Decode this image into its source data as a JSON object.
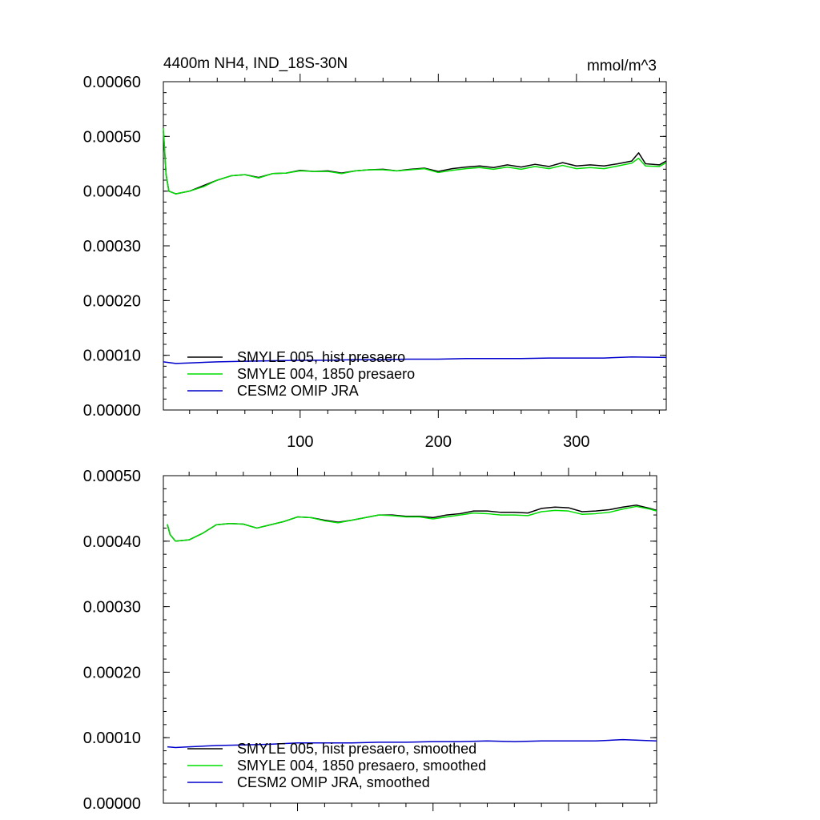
{
  "chart_data": [
    {
      "type": "line",
      "title": "4400m NH4, IND_18S-30N",
      "units": "mmol/m^3",
      "xlabel": "",
      "ylabel": "",
      "xlim": [
        1,
        365
      ],
      "ylim": [
        0,
        0.0006
      ],
      "x_ticks": [
        100,
        200,
        300
      ],
      "x_tick_labels": [
        "100",
        "200",
        "300"
      ],
      "y_ticks": [
        0,
        0.0001,
        0.0002,
        0.0003,
        0.0004,
        0.0005,
        0.0006
      ],
      "y_tick_labels": [
        "0.00000",
        "0.00010",
        "0.00020",
        "0.00030",
        "0.00040",
        "0.00050",
        "0.00060"
      ],
      "grid": false,
      "legend_position": "bottom-left",
      "series": [
        {
          "name": "SMYLE 005, hist presaero",
          "color": "#000000",
          "x": [
            1,
            3,
            5,
            10,
            20,
            30,
            40,
            50,
            60,
            70,
            80,
            90,
            100,
            110,
            120,
            130,
            140,
            150,
            160,
            170,
            180,
            190,
            200,
            210,
            220,
            230,
            240,
            250,
            260,
            270,
            280,
            290,
            300,
            310,
            320,
            330,
            340,
            345,
            350,
            360,
            365
          ],
          "values": [
            0.00051,
            0.00043,
            0.0004,
            0.000395,
            0.0004,
            0.00041,
            0.00042,
            0.000428,
            0.00043,
            0.000425,
            0.000432,
            0.000433,
            0.000438,
            0.000436,
            0.000437,
            0.000433,
            0.000437,
            0.000439,
            0.00044,
            0.000437,
            0.00044,
            0.000442,
            0.000436,
            0.000441,
            0.000444,
            0.000446,
            0.000443,
            0.000448,
            0.000444,
            0.000449,
            0.000445,
            0.000452,
            0.000446,
            0.000448,
            0.000446,
            0.00045,
            0.000455,
            0.00047,
            0.00045,
            0.000448,
            0.000455
          ]
        },
        {
          "name": "SMYLE 004, 1850 presaero",
          "color": "#00dd00",
          "x": [
            1,
            3,
            5,
            10,
            20,
            30,
            40,
            50,
            60,
            70,
            80,
            90,
            100,
            110,
            120,
            130,
            140,
            150,
            160,
            170,
            180,
            190,
            200,
            210,
            220,
            230,
            240,
            250,
            260,
            270,
            280,
            290,
            300,
            310,
            320,
            330,
            340,
            345,
            350,
            360,
            365
          ],
          "values": [
            0.000515,
            0.00043,
            0.0004,
            0.000395,
            0.0004,
            0.000408,
            0.00042,
            0.000428,
            0.00043,
            0.000424,
            0.000432,
            0.000433,
            0.000437,
            0.000436,
            0.000436,
            0.000432,
            0.000437,
            0.000439,
            0.000439,
            0.000437,
            0.000439,
            0.000441,
            0.000434,
            0.000438,
            0.000441,
            0.000443,
            0.00044,
            0.000444,
            0.00044,
            0.000445,
            0.000441,
            0.000447,
            0.000441,
            0.000443,
            0.000441,
            0.000446,
            0.000451,
            0.00046,
            0.000446,
            0.000445,
            0.000452
          ]
        },
        {
          "name": "CESM2 OMIP JRA",
          "color": "#0000cc",
          "x": [
            1,
            10,
            20,
            40,
            60,
            80,
            100,
            120,
            140,
            160,
            180,
            200,
            220,
            240,
            260,
            280,
            300,
            320,
            340,
            365
          ],
          "values": [
            8.8e-05,
            8.5e-05,
            8.6e-05,
            8.8e-05,
            8.9e-05,
            9e-05,
            9.1e-05,
            9.1e-05,
            9.2e-05,
            9.2e-05,
            9.3e-05,
            9.3e-05,
            9.4e-05,
            9.4e-05,
            9.4e-05,
            9.5e-05,
            9.5e-05,
            9.5e-05,
            9.7e-05,
            9.6e-05
          ]
        }
      ]
    },
    {
      "type": "line",
      "title": "",
      "xlabel": "",
      "ylabel": "",
      "xlim": [
        1,
        365
      ],
      "ylim": [
        0,
        0.0005
      ],
      "x_ticks": [
        100,
        200,
        300
      ],
      "x_tick_labels": [],
      "y_ticks": [
        0,
        0.0001,
        0.0002,
        0.0003,
        0.0004,
        0.0005
      ],
      "y_tick_labels": [
        "0.00000",
        "0.00010",
        "0.00020",
        "0.00030",
        "0.00040",
        "0.00050"
      ],
      "grid": false,
      "legend_position": "bottom-left",
      "series": [
        {
          "name": "SMYLE 005, hist presaero, smoothed",
          "color": "#000000",
          "x": [
            4,
            6,
            10,
            20,
            30,
            40,
            50,
            60,
            70,
            80,
            90,
            100,
            110,
            120,
            130,
            140,
            150,
            160,
            170,
            180,
            190,
            200,
            210,
            220,
            230,
            240,
            250,
            260,
            270,
            280,
            290,
            300,
            310,
            320,
            330,
            340,
            350,
            360,
            365
          ],
          "values": [
            0.000425,
            0.00041,
            0.0004,
            0.000402,
            0.000412,
            0.000425,
            0.000427,
            0.000426,
            0.00042,
            0.000425,
            0.00043,
            0.000437,
            0.000436,
            0.000432,
            0.000429,
            0.000432,
            0.000436,
            0.00044,
            0.00044,
            0.000438,
            0.000438,
            0.000436,
            0.00044,
            0.000442,
            0.000446,
            0.000446,
            0.000444,
            0.000444,
            0.000443,
            0.00045,
            0.000452,
            0.000451,
            0.000445,
            0.000446,
            0.000448,
            0.000452,
            0.000455,
            0.00045,
            0.000447
          ]
        },
        {
          "name": "SMYLE 004, 1850 presaero, smoothed",
          "color": "#00dd00",
          "x": [
            4,
            6,
            10,
            20,
            30,
            40,
            50,
            60,
            70,
            80,
            90,
            100,
            110,
            120,
            130,
            140,
            150,
            160,
            170,
            180,
            190,
            200,
            210,
            220,
            230,
            240,
            250,
            260,
            270,
            280,
            290,
            300,
            310,
            320,
            330,
            340,
            350,
            360,
            365
          ],
          "values": [
            0.000426,
            0.00041,
            0.0004,
            0.000402,
            0.000412,
            0.000425,
            0.000427,
            0.000426,
            0.00042,
            0.000425,
            0.00043,
            0.000437,
            0.000436,
            0.000431,
            0.000428,
            0.000432,
            0.000436,
            0.00044,
            0.000439,
            0.000437,
            0.000437,
            0.000434,
            0.000437,
            0.00044,
            0.000443,
            0.000442,
            0.00044,
            0.00044,
            0.000439,
            0.000445,
            0.000447,
            0.000446,
            0.000441,
            0.000442,
            0.000444,
            0.000449,
            0.000453,
            0.000449,
            0.000446
          ]
        },
        {
          "name": "CESM2 OMIP JRA, smoothed",
          "color": "#0000cc",
          "x": [
            4,
            10,
            20,
            40,
            60,
            80,
            100,
            120,
            140,
            160,
            180,
            200,
            220,
            240,
            260,
            280,
            300,
            320,
            340,
            365
          ],
          "values": [
            8.6e-05,
            8.5e-05,
            8.6e-05,
            8.8e-05,
            8.9e-05,
            9e-05,
            9.2e-05,
            9.2e-05,
            9.2e-05,
            9.3e-05,
            9.3e-05,
            9.4e-05,
            9.4e-05,
            9.5e-05,
            9.4e-05,
            9.5e-05,
            9.5e-05,
            9.5e-05,
            9.7e-05,
            9.5e-05
          ]
        }
      ]
    }
  ]
}
